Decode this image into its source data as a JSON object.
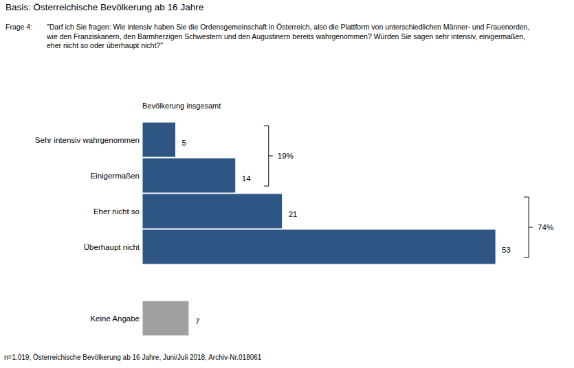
{
  "chart_data": {
    "type": "bar",
    "orientation": "horizontal",
    "title": "Basis:  Österreichische Bevölkerung ab 16 Jahre",
    "question_label": "Frage 4:",
    "question": [
      "\"Darf ich Sie fragen: Wie intensiv haben Sie die Ordensgemeinschaft in Österreich, also die Plattform von unterschiedlichen Männer- und Frauenorden,",
      "wie den Franziskanern, den Barmherzigen Schwestern und den Augustinern bereits wahrgenommen? Würden Sie sagen sehr intensiv, einigermaßen,",
      "eher nicht so oder überhaupt nicht?\""
    ],
    "subtitle": "Bevölkerung insgesamt",
    "categories": [
      "Sehr intensiv wahrgenommen",
      "Einigermaßen",
      "Eher nicht so",
      "Überhaupt nicht",
      "Keine Angabe"
    ],
    "values": [
      5,
      14,
      21,
      53,
      7
    ],
    "colors": [
      "#2f5585",
      "#2f5585",
      "#2f5585",
      "#2f5585",
      "#a0a0a0"
    ],
    "xlim": [
      0,
      60
    ],
    "tick_labels": false,
    "data_labels": true,
    "groups": [
      {
        "members": [
          "Sehr intensiv wahrgenommen",
          "Einigermaßen"
        ],
        "value": 19,
        "label": "19%"
      },
      {
        "members": [
          "Eher nicht so",
          "Überhaupt nicht"
        ],
        "value": 74,
        "label": "74%"
      }
    ],
    "footnote": "n=1.019, Österreichische Bevölkerung ab 16 Jahre, Juni/Juli 2018, Archiv-Nr.018061"
  }
}
